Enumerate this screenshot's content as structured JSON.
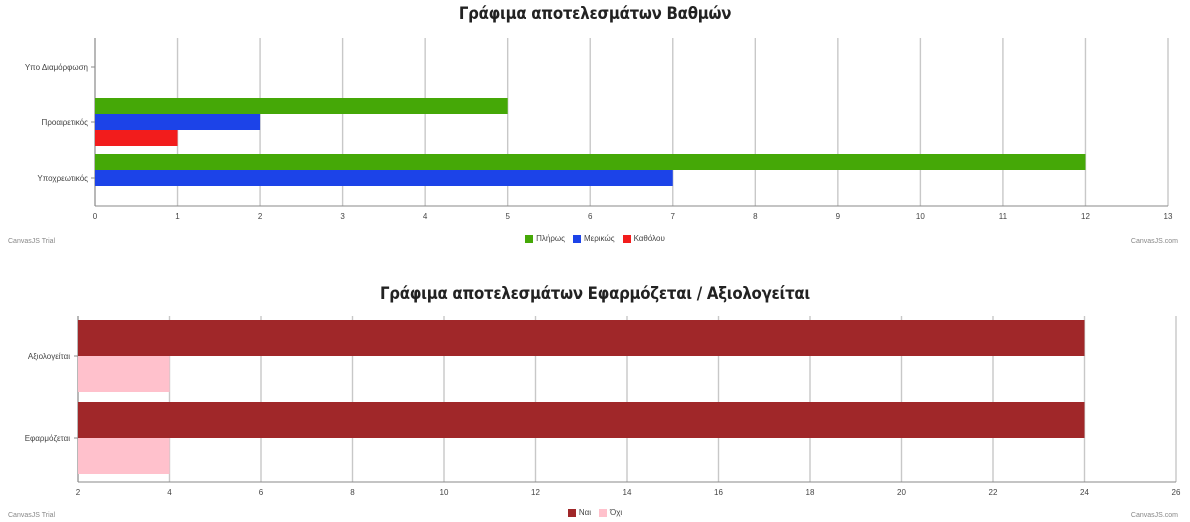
{
  "chart_data": [
    {
      "type": "bar",
      "orientation": "horizontal",
      "title": "Γράφιμα αποτελεσμάτων Βαθμών",
      "categories": [
        "Υποχρεωτικός",
        "Προαιρετικός",
        "Υπο Διαμόρφωση"
      ],
      "series": [
        {
          "name": "Πλήρως",
          "color": "#45a807",
          "values": [
            12,
            5,
            0
          ]
        },
        {
          "name": "Μερικώς",
          "color": "#1c43e8",
          "values": [
            7,
            2,
            0
          ]
        },
        {
          "name": "Καθόλου",
          "color": "#f21c1c",
          "values": [
            0,
            1,
            0
          ]
        }
      ],
      "xlim": [
        0,
        13
      ],
      "ticks": [
        "0",
        "1",
        "2",
        "3",
        "4",
        "5",
        "6",
        "7",
        "8",
        "9",
        "10",
        "11",
        "12",
        "13"
      ],
      "grid": true,
      "legend": "bottom-center",
      "watermark_left": "CanvasJS Trial",
      "watermark_right": "CanvasJS.com"
    },
    {
      "type": "bar",
      "orientation": "horizontal",
      "title": "Γράφιμα αποτελεσμάτων Εφαρμόζεται / Αξιολογείται",
      "categories": [
        "Εφαρμόζεται",
        "Αξιολογείται"
      ],
      "series": [
        {
          "name": "Ναι",
          "color": "#a02729",
          "values": [
            24,
            24
          ]
        },
        {
          "name": "Όχι",
          "color": "#ffc1cc",
          "values": [
            4,
            4
          ]
        }
      ],
      "xlim": [
        2,
        26
      ],
      "ticks": [
        "2",
        "4",
        "6",
        "8",
        "10",
        "12",
        "14",
        "16",
        "18",
        "20",
        "22",
        "24",
        "26"
      ],
      "grid": true,
      "legend": "bottom-center",
      "watermark_left": "CanvasJS Trial",
      "watermark_right": "CanvasJS.com"
    }
  ]
}
